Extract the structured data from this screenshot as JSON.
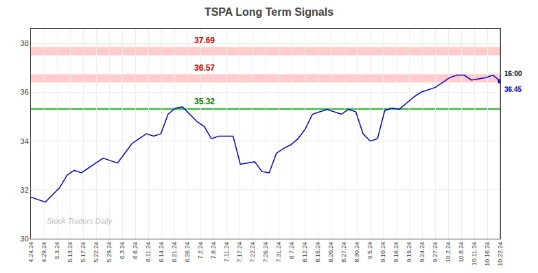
{
  "chart_data": {
    "type": "line",
    "title": "TSPA Long Term Signals",
    "color": "#0000cc",
    "values": [
      31.7,
      31.6,
      31.5,
      31.8,
      32.1,
      32.6,
      32.8,
      32.7,
      32.9,
      33.1,
      33.3,
      33.2,
      33.1,
      33.5,
      33.9,
      34.1,
      34.3,
      34.2,
      34.3,
      35.1,
      35.35,
      35.4,
      35.1,
      34.8,
      34.6,
      34.1,
      34.2,
      34.2,
      34.2,
      33.05,
      33.1,
      33.15,
      32.75,
      32.7,
      33.5,
      33.7,
      33.85,
      34.1,
      34.5,
      35.1,
      35.2,
      35.3,
      35.2,
      35.1,
      35.3,
      35.2,
      34.3,
      34.0,
      34.1,
      35.25,
      35.35,
      35.3,
      35.55,
      35.8,
      36.0,
      36.1,
      36.2,
      36.4,
      36.6,
      36.7,
      36.7,
      36.5,
      36.55,
      36.6,
      36.7,
      36.45
    ],
    "xlim": [
      0,
      65
    ],
    "xticks": [
      {
        "value": 0,
        "label": "4.24.24"
      },
      {
        "value": 1.8056,
        "label": "4.29.24"
      },
      {
        "value": 3.6111,
        "label": "5.3.24"
      },
      {
        "value": 5.4167,
        "label": "5.13.24"
      },
      {
        "value": 7.2222,
        "label": "5.17.24"
      },
      {
        "value": 9.0278,
        "label": "5.22.24"
      },
      {
        "value": 10.8333,
        "label": "5.29.24"
      },
      {
        "value": 12.6389,
        "label": "6.3.24"
      },
      {
        "value": 14.4444,
        "label": "6.6.24"
      },
      {
        "value": 16.25,
        "label": "6.11.24"
      },
      {
        "value": 18.0556,
        "label": "6.14.24"
      },
      {
        "value": 19.8611,
        "label": "6.21.24"
      },
      {
        "value": 21.6667,
        "label": "6.26.24"
      },
      {
        "value": 23.4722,
        "label": "7.2.24"
      },
      {
        "value": 25.2778,
        "label": "7.8.24"
      },
      {
        "value": 27.0833,
        "label": "7.11.24"
      },
      {
        "value": 28.8889,
        "label": "7.17.24"
      },
      {
        "value": 30.6944,
        "label": "7.22.24"
      },
      {
        "value": 32.5,
        "label": "7.26.24"
      },
      {
        "value": 34.3056,
        "label": "7.31.24"
      },
      {
        "value": 36.1111,
        "label": "8.7.24"
      },
      {
        "value": 37.9167,
        "label": "8.12.24"
      },
      {
        "value": 39.7222,
        "label": "8.15.24"
      },
      {
        "value": 41.5278,
        "label": "8.20.24"
      },
      {
        "value": 43.3333,
        "label": "8.27.24"
      },
      {
        "value": 45.1389,
        "label": "8.30.24"
      },
      {
        "value": 46.9444,
        "label": "9.5.24"
      },
      {
        "value": 48.75,
        "label": "9.10.24"
      },
      {
        "value": 50.5556,
        "label": "9.16.24"
      },
      {
        "value": 52.3611,
        "label": "9.19.24"
      },
      {
        "value": 54.1667,
        "label": "9.24.24"
      },
      {
        "value": 55.9722,
        "label": "9.27.24"
      },
      {
        "value": 57.7778,
        "label": "10.2.24"
      },
      {
        "value": 59.5833,
        "label": "10.8.24"
      },
      {
        "value": 61.3889,
        "label": "10.11.24"
      },
      {
        "value": 63.1944,
        "label": "10.16.24"
      },
      {
        "value": 65,
        "label": "10.22.24"
      }
    ],
    "ylim": [
      30,
      38.6
    ],
    "yticks": [
      30,
      32,
      34,
      36,
      38
    ],
    "grid": true,
    "reference_lines": [
      {
        "value": 37.69,
        "label": "37.69",
        "color": "#ffaaaa",
        "label_color": "#cc0000"
      },
      {
        "value": 36.57,
        "label": "36.57",
        "color": "#ffaaaa",
        "label_color": "#cc0000"
      },
      {
        "value": 35.32,
        "label": "35.32",
        "color": "#44bb44",
        "label_color": "#007700"
      }
    ],
    "last_point": {
      "value": 36.45,
      "label": "36.45",
      "time_label": "16:00"
    },
    "watermark": "Stock Traders Daily"
  }
}
